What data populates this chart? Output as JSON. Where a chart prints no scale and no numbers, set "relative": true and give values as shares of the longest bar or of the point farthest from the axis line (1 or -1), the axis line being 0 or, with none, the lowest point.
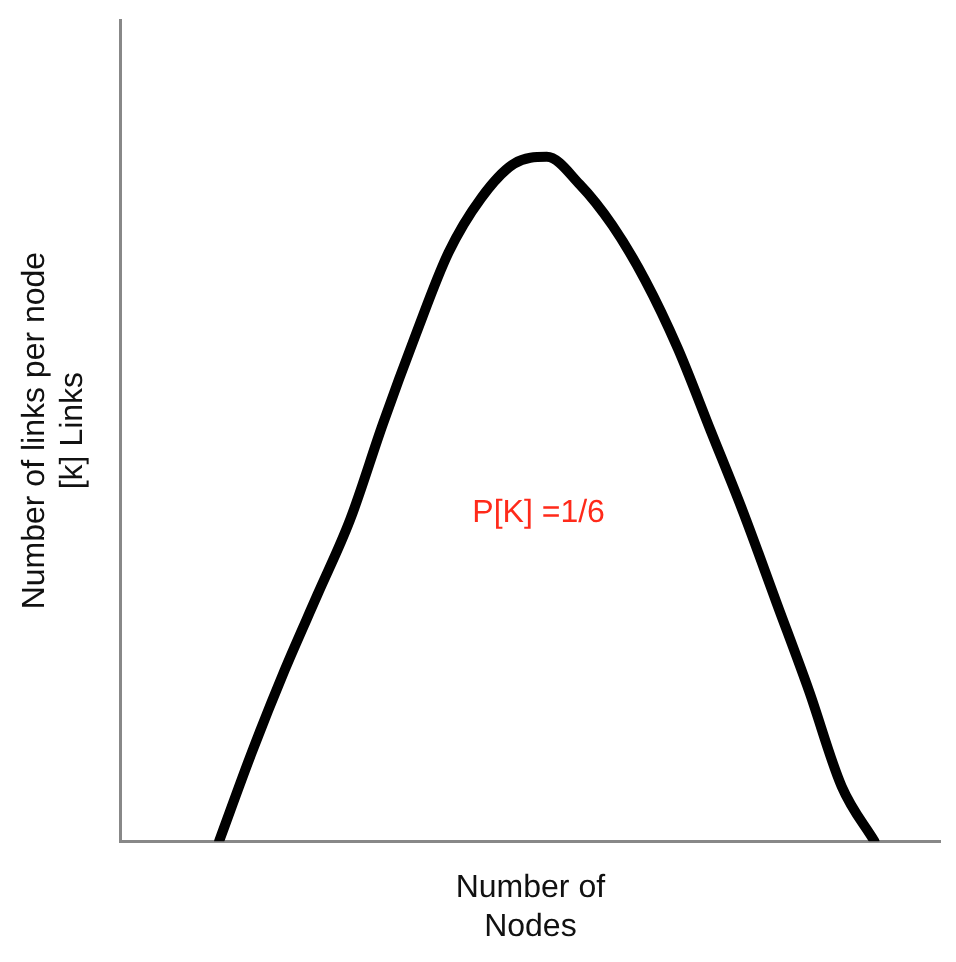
{
  "chart_data": {
    "type": "line",
    "relative": true,
    "xlabel": "Number of\nNodes",
    "ylabel": "Number of links per node\n[k] Links",
    "categories": [
      null,
      null,
      null,
      null,
      null,
      null,
      null,
      null,
      null,
      null,
      null,
      null,
      null,
      null,
      null,
      null,
      null,
      null,
      null,
      null,
      null,
      null,
      null,
      null,
      null,
      null
    ],
    "series": [
      {
        "color": "#000000",
        "values": [
          null,
          null,
          null,
          0,
          0.13,
          0.25,
          0.36,
          0.47,
          0.61,
          0.74,
          0.86,
          0.94,
          0.99,
          1,
          0.96,
          0.9,
          0.82,
          0.72,
          0.6,
          0.48,
          0.35,
          0.22,
          0.08,
          0,
          null,
          null
        ]
      }
    ],
    "annotations": [
      "P[K] =1/6"
    ],
    "marker": "none",
    "line_style": "solid",
    "grid": false,
    "legend": false,
    "tick_labels": false
  }
}
